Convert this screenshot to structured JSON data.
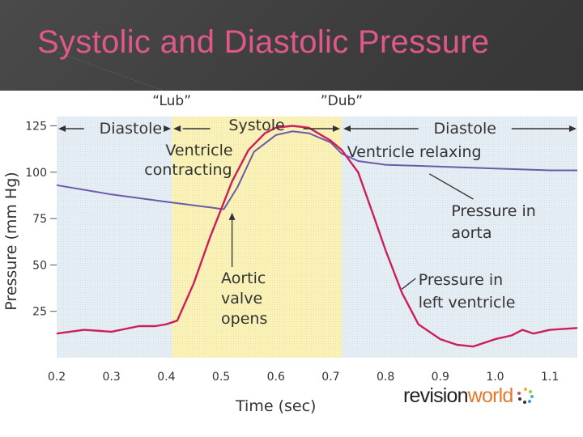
{
  "slide": {
    "title": "Systolic and Diastolic Pressure"
  },
  "chart_data": {
    "type": "line",
    "title": "",
    "xlabel": "Time (sec)",
    "ylabel": "Pressure (mm Hg)",
    "xlim": [
      0.2,
      1.15
    ],
    "ylim": [
      0,
      130
    ],
    "xticks": [
      "0.2",
      "0.3",
      "0.4",
      "0.5",
      "0.6",
      "0.7",
      "0.8",
      "0.9",
      "1.0",
      "1.1"
    ],
    "yticks": [
      "25",
      "50",
      "75",
      "100",
      "125"
    ],
    "x_tick_values": [
      0.2,
      0.3,
      0.4,
      0.5,
      0.6,
      0.7,
      0.8,
      0.9,
      1.0,
      1.1
    ],
    "y_tick_values": [
      25,
      50,
      75,
      100,
      125
    ],
    "grid": false,
    "regions": [
      {
        "label": "Diastole",
        "x": [
          0.2,
          0.41
        ],
        "color": "#e6eef5"
      },
      {
        "label": "Systole",
        "x": [
          0.41,
          0.72
        ],
        "color": "#fbf2b8"
      },
      {
        "label": "Diastole",
        "x": [
          0.72,
          1.15
        ],
        "color": "#e6eef5"
      }
    ],
    "heart_sounds": [
      {
        "label": "“Lub”",
        "x": 0.41
      },
      {
        "label": "”Dub”",
        "x": 0.72
      }
    ],
    "series": [
      {
        "name": "Pressure in aorta",
        "color": "#6a5aaa",
        "x": [
          0.2,
          0.3,
          0.4,
          0.48,
          0.505,
          0.53,
          0.56,
          0.6,
          0.63,
          0.66,
          0.7,
          0.72,
          0.75,
          0.8,
          0.9,
          1.0,
          1.1,
          1.15
        ],
        "y": [
          93,
          88,
          84,
          81,
          80,
          92,
          111,
          120,
          122,
          121,
          116,
          110,
          106,
          104,
          103,
          102,
          101,
          101
        ]
      },
      {
        "name": "Pressure in left ventricle",
        "color": "#cc1f5a",
        "x": [
          0.2,
          0.25,
          0.3,
          0.35,
          0.38,
          0.4,
          0.42,
          0.45,
          0.48,
          0.5,
          0.52,
          0.55,
          0.58,
          0.6,
          0.63,
          0.66,
          0.7,
          0.72,
          0.75,
          0.78,
          0.8,
          0.83,
          0.86,
          0.9,
          0.93,
          0.96,
          1.0,
          1.03,
          1.05,
          1.07,
          1.1,
          1.15
        ],
        "y": [
          13,
          15,
          14,
          17,
          17,
          18,
          20,
          40,
          65,
          80,
          95,
          112,
          121,
          124,
          125,
          124,
          117,
          112,
          100,
          75,
          58,
          35,
          18,
          10,
          7,
          6,
          10,
          12,
          15,
          13,
          15,
          16
        ]
      }
    ],
    "annotations": [
      {
        "id": "diastole-left",
        "text": "Diastole"
      },
      {
        "id": "systole",
        "text": "Systole"
      },
      {
        "id": "diastole-right",
        "text": "Diastole"
      },
      {
        "id": "ventricle-contracting-1",
        "text": "Ventricle"
      },
      {
        "id": "ventricle-contracting-2",
        "text": "contracting"
      },
      {
        "id": "ventricle-relaxing",
        "text": "Ventricle relaxing"
      },
      {
        "id": "pressure-aorta-1",
        "text": "Pressure in"
      },
      {
        "id": "pressure-aorta-2",
        "text": "aorta"
      },
      {
        "id": "aortic-valve-1",
        "text": "Aortic"
      },
      {
        "id": "aortic-valve-2",
        "text": "valve"
      },
      {
        "id": "aortic-valve-3",
        "text": "opens"
      },
      {
        "id": "pressure-lv-1",
        "text": "Pressure in"
      },
      {
        "id": "pressure-lv-2",
        "text": "left ventricle"
      }
    ]
  },
  "logo": {
    "part1": "revision",
    "part2": "world"
  }
}
